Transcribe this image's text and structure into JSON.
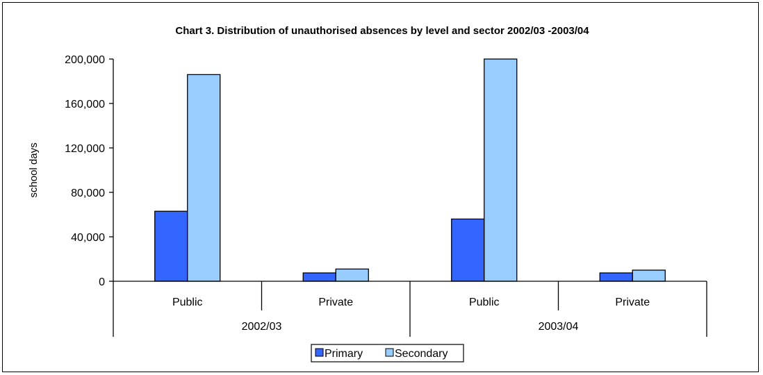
{
  "chart_data": {
    "type": "bar",
    "title": "Chart 3. Distribution of unauthorised absences by level and sector 2002/03 -2003/04",
    "ylabel": "school days",
    "xlabel": "",
    "ylim": [
      0,
      200000
    ],
    "yticks": [
      0,
      40000,
      80000,
      120000,
      160000,
      200000
    ],
    "ytick_labels": [
      "0",
      "40,000",
      "80,000",
      "120,000",
      "160,000",
      "200,000"
    ],
    "groups": [
      {
        "label": "2002/03",
        "categories": [
          "Public",
          "Private"
        ]
      },
      {
        "label": "2003/04",
        "categories": [
          "Public",
          "Private"
        ]
      }
    ],
    "categories": [
      "Public",
      "Private",
      "Public",
      "Private"
    ],
    "series": [
      {
        "name": "Primary",
        "color": "#3366ff",
        "values": [
          63000,
          7500,
          56000,
          7500
        ]
      },
      {
        "name": "Secondary",
        "color": "#99ccff",
        "values": [
          186000,
          11000,
          205000,
          10000
        ]
      }
    ],
    "grid": false,
    "legend_position": "bottom"
  }
}
